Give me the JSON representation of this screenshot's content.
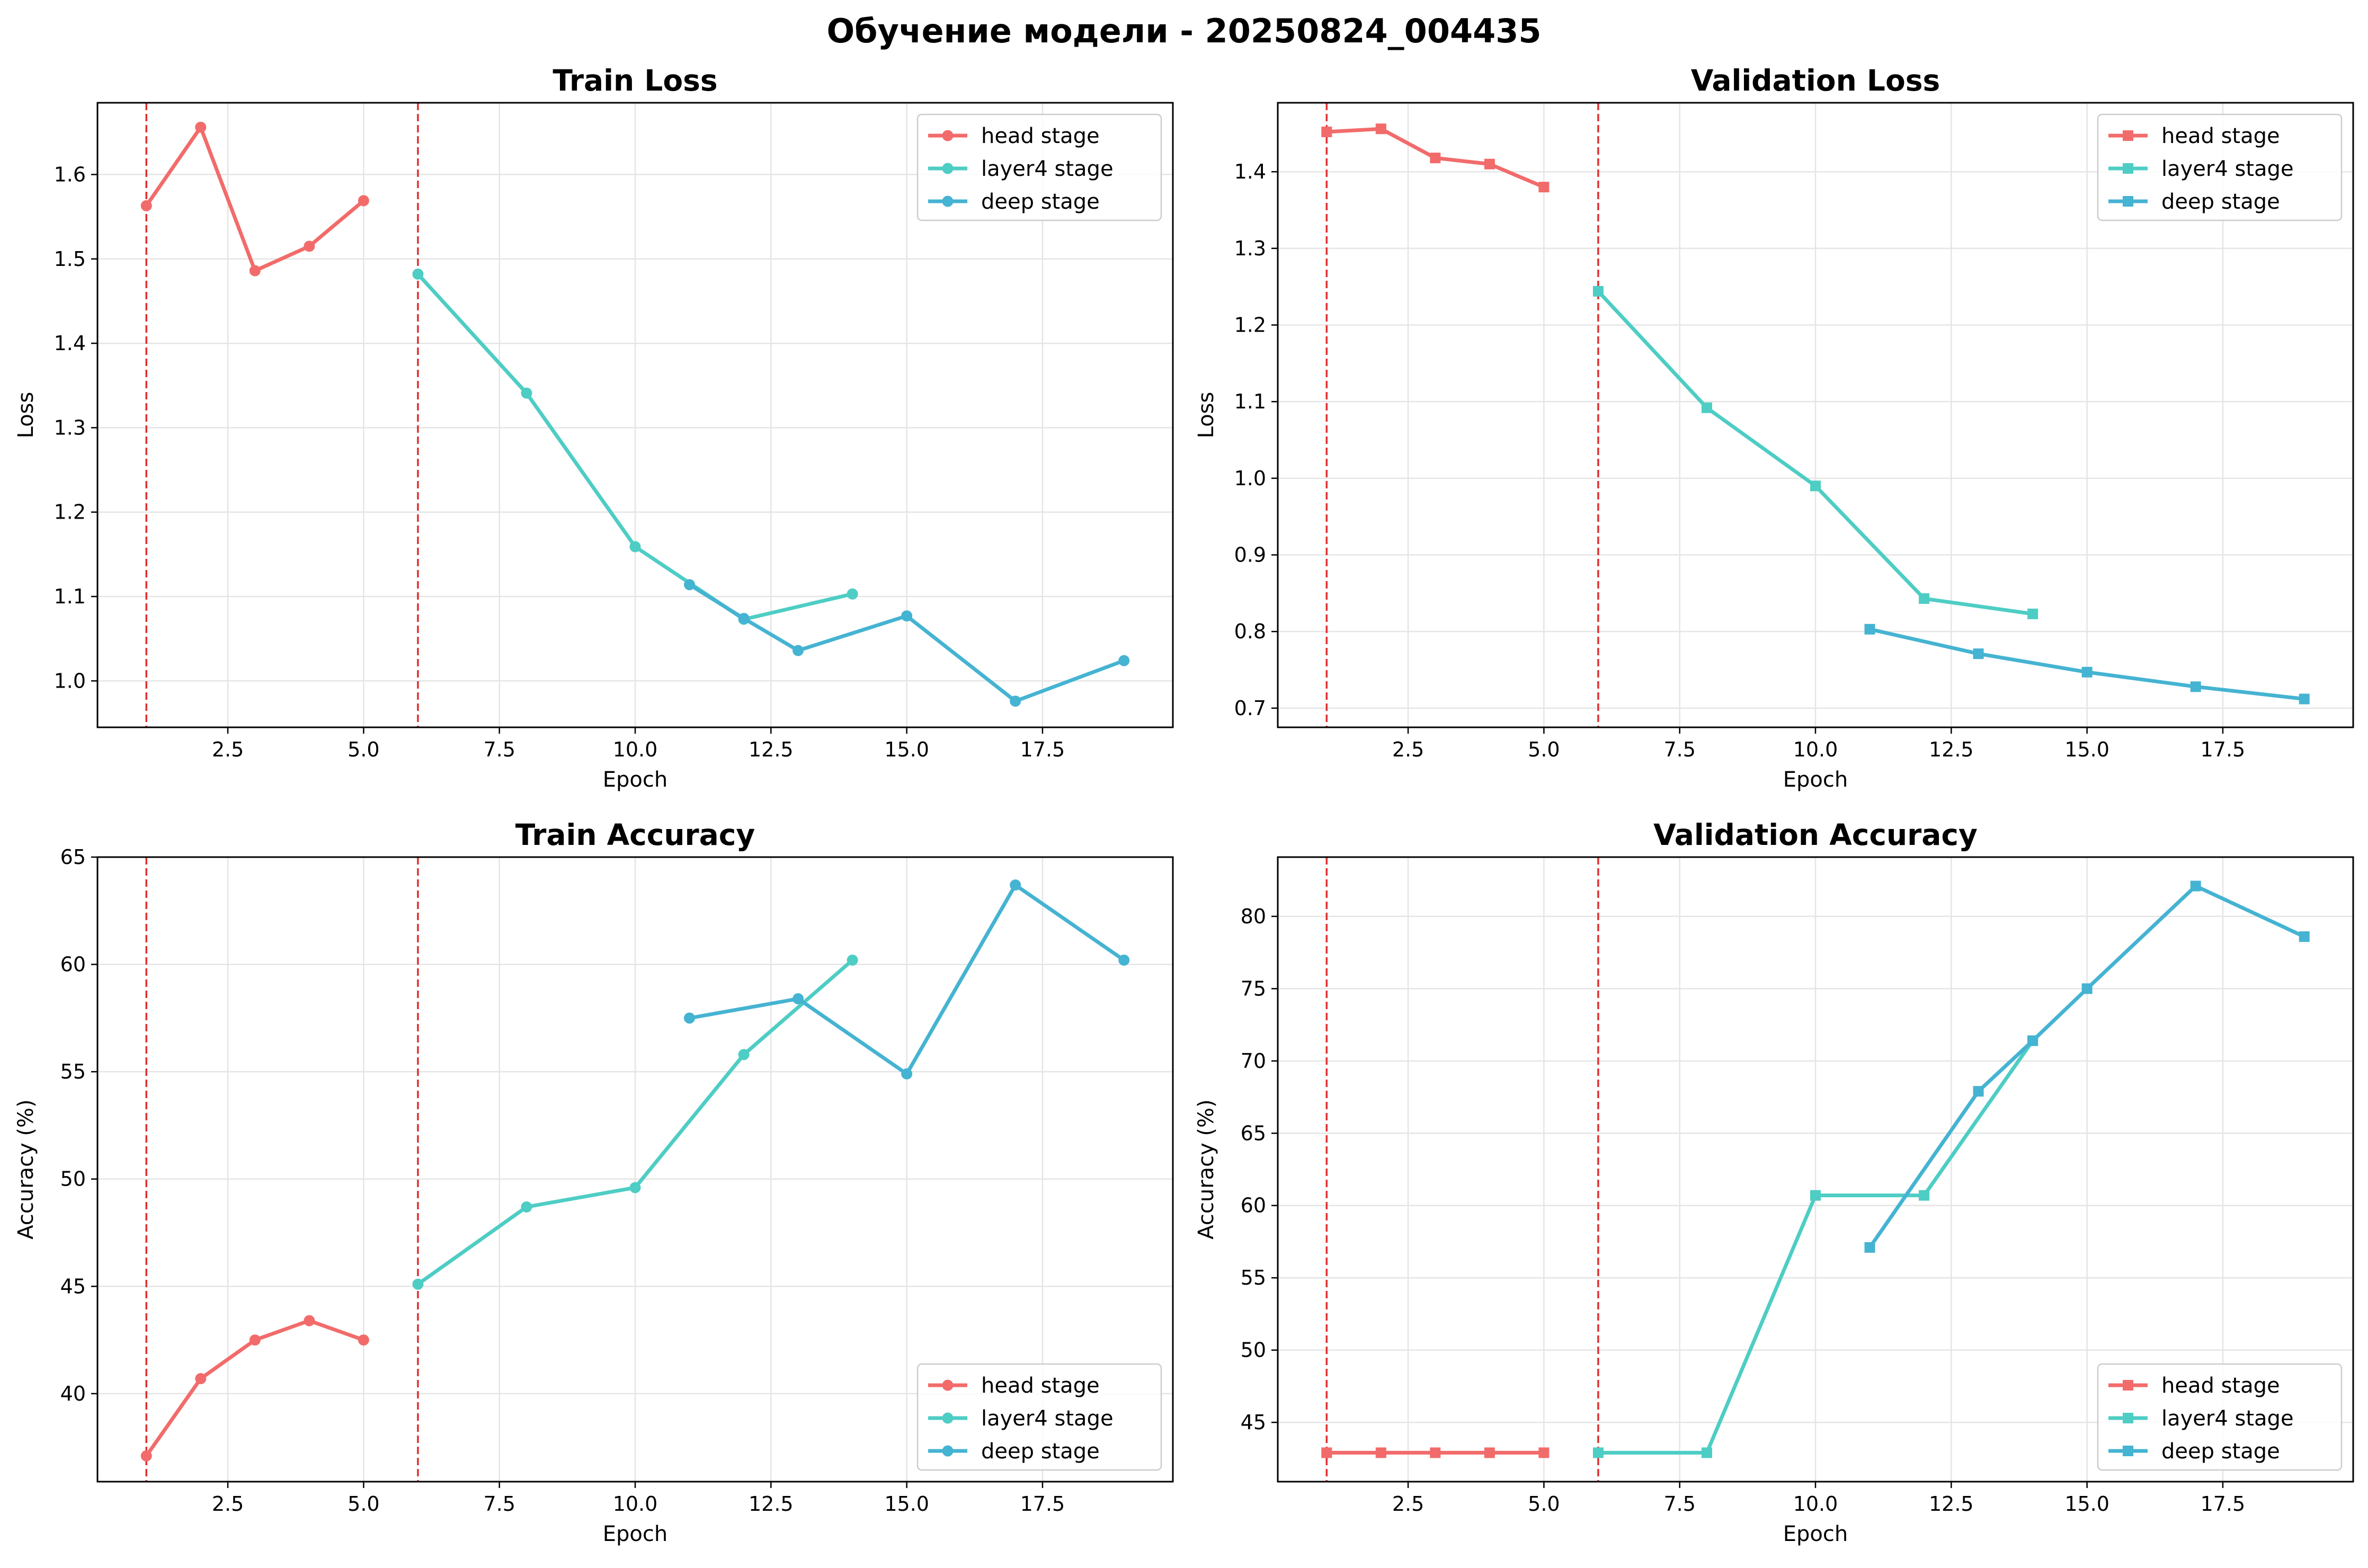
{
  "figure_title": "Обучение модели - 20250824_004435",
  "colors": {
    "head": "#f26b6b",
    "layer4": "#4ecdc4",
    "deep": "#45b3d2",
    "stage_marker": "#e03030",
    "grid": "#e5e5e5"
  },
  "chart_data": [
    {
      "type": "line",
      "title": "Train Loss",
      "xlabel": "Epoch",
      "ylabel": "Loss",
      "xlim": [
        0.1,
        19.9
      ],
      "ylim": [
        0.945,
        1.685
      ],
      "xticks": [
        2.5,
        5.0,
        7.5,
        10.0,
        12.5,
        15.0,
        17.5
      ],
      "xtick_labels": [
        "2.5",
        "5.0",
        "7.5",
        "10.0",
        "12.5",
        "15.0",
        "17.5"
      ],
      "yticks": [
        1.0,
        1.1,
        1.2,
        1.3,
        1.4,
        1.5,
        1.6
      ],
      "ytick_labels": [
        "1.0",
        "1.1",
        "1.2",
        "1.3",
        "1.4",
        "1.5",
        "1.6"
      ],
      "grid": true,
      "legend_position": "upper right",
      "marker": "circle",
      "stage_lines": [
        1,
        6
      ],
      "series": [
        {
          "name": "head stage",
          "color_key": "head",
          "x": [
            1,
            2,
            3,
            4,
            5
          ],
          "y": [
            1.563,
            1.656,
            1.486,
            1.515,
            1.569
          ]
        },
        {
          "name": "layer4 stage",
          "color_key": "layer4",
          "x": [
            6,
            8,
            10,
            12,
            14
          ],
          "y": [
            1.482,
            1.341,
            1.159,
            1.073,
            1.103
          ]
        },
        {
          "name": "deep stage",
          "color_key": "deep",
          "x": [
            11,
            12,
            13,
            15,
            17,
            19
          ],
          "y": [
            1.114,
            1.074,
            1.036,
            1.077,
            0.976,
            1.024
          ]
        }
      ]
    },
    {
      "type": "line",
      "title": "Validation Loss",
      "xlabel": "Epoch",
      "ylabel": "Loss",
      "xlim": [
        0.1,
        19.9
      ],
      "ylim": [
        0.675,
        1.49
      ],
      "xticks": [
        2.5,
        5.0,
        7.5,
        10.0,
        12.5,
        15.0,
        17.5
      ],
      "xtick_labels": [
        "2.5",
        "5.0",
        "7.5",
        "10.0",
        "12.5",
        "15.0",
        "17.5"
      ],
      "yticks": [
        0.7,
        0.8,
        0.9,
        1.0,
        1.1,
        1.2,
        1.3,
        1.4
      ],
      "ytick_labels": [
        "0.7",
        "0.8",
        "0.9",
        "1.0",
        "1.1",
        "1.2",
        "1.3",
        "1.4"
      ],
      "grid": true,
      "legend_position": "upper right",
      "marker": "square",
      "stage_lines": [
        1,
        6
      ],
      "series": [
        {
          "name": "head stage",
          "color_key": "head",
          "x": [
            1,
            2,
            3,
            4,
            5
          ],
          "y": [
            1.452,
            1.456,
            1.418,
            1.41,
            1.38
          ]
        },
        {
          "name": "layer4 stage",
          "color_key": "layer4",
          "x": [
            6,
            8,
            10,
            12,
            14
          ],
          "y": [
            1.244,
            1.092,
            0.99,
            0.843,
            0.823
          ]
        },
        {
          "name": "deep stage",
          "color_key": "deep",
          "x": [
            11,
            13,
            15,
            17,
            19
          ],
          "y": [
            0.803,
            0.771,
            0.747,
            0.728,
            0.712
          ]
        }
      ]
    },
    {
      "type": "line",
      "title": "Train Accuracy",
      "xlabel": "Epoch",
      "ylabel": "Accuracy (%)",
      "xlim": [
        0.1,
        19.9
      ],
      "ylim": [
        35.9,
        65.0
      ],
      "xticks": [
        2.5,
        5.0,
        7.5,
        10.0,
        12.5,
        15.0,
        17.5
      ],
      "xtick_labels": [
        "2.5",
        "5.0",
        "7.5",
        "10.0",
        "12.5",
        "15.0",
        "17.5"
      ],
      "yticks": [
        40,
        45,
        50,
        55,
        60,
        65
      ],
      "ytick_labels": [
        "40",
        "45",
        "50",
        "55",
        "60",
        "65"
      ],
      "grid": true,
      "legend_position": "lower right",
      "marker": "circle",
      "stage_lines": [
        1,
        6
      ],
      "series": [
        {
          "name": "head stage",
          "color_key": "head",
          "x": [
            1,
            2,
            3,
            4,
            5
          ],
          "y": [
            37.1,
            40.7,
            42.5,
            43.4,
            42.5
          ]
        },
        {
          "name": "layer4 stage",
          "color_key": "layer4",
          "x": [
            6,
            8,
            10,
            12,
            14
          ],
          "y": [
            45.1,
            48.7,
            49.6,
            55.8,
            60.2
          ]
        },
        {
          "name": "deep stage",
          "color_key": "deep",
          "x": [
            11,
            13,
            15,
            17,
            19
          ],
          "y": [
            57.5,
            58.4,
            54.9,
            63.7,
            60.2
          ]
        }
      ]
    },
    {
      "type": "line",
      "title": "Validation Accuracy",
      "xlabel": "Epoch",
      "ylabel": "Accuracy (%)",
      "xlim": [
        0.1,
        19.9
      ],
      "ylim": [
        40.9,
        84.1
      ],
      "xticks": [
        2.5,
        5.0,
        7.5,
        10.0,
        12.5,
        15.0,
        17.5
      ],
      "xtick_labels": [
        "2.5",
        "5.0",
        "7.5",
        "10.0",
        "12.5",
        "15.0",
        "17.5"
      ],
      "yticks": [
        45,
        50,
        55,
        60,
        65,
        70,
        75,
        80
      ],
      "ytick_labels": [
        "45",
        "50",
        "55",
        "60",
        "65",
        "70",
        "75",
        "80"
      ],
      "grid": true,
      "legend_position": "lower right",
      "marker": "square",
      "stage_lines": [
        1,
        6
      ],
      "series": [
        {
          "name": "head stage",
          "color_key": "head",
          "x": [
            1,
            2,
            3,
            4,
            5
          ],
          "y": [
            42.9,
            42.9,
            42.9,
            42.9,
            42.9
          ]
        },
        {
          "name": "layer4 stage",
          "color_key": "layer4",
          "x": [
            6,
            8,
            10,
            12,
            14
          ],
          "y": [
            42.9,
            42.9,
            60.7,
            60.7,
            71.4
          ]
        },
        {
          "name": "deep stage",
          "color_key": "deep",
          "x": [
            11,
            13,
            14,
            15,
            17,
            19
          ],
          "y": [
            57.1,
            67.9,
            71.4,
            75.0,
            82.1,
            78.6
          ]
        }
      ]
    }
  ]
}
